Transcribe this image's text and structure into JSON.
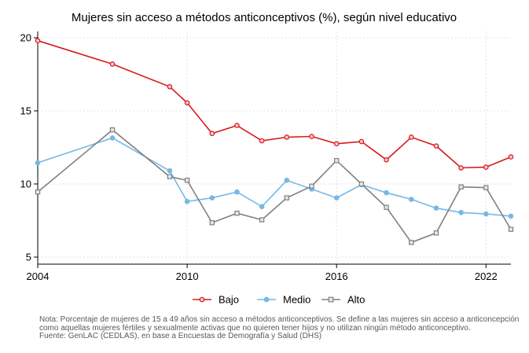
{
  "chart_data": {
    "type": "line",
    "title": "Mujeres sin acceso a métodos anticonceptivos (%), según nivel educativo",
    "xlabel": "",
    "ylabel": "",
    "xlim": [
      2004,
      2022.8
    ],
    "ylim": [
      5,
      20
    ],
    "x_ticks": [
      2004,
      2010,
      2016,
      2022
    ],
    "y_ticks": [
      5,
      10,
      15,
      20
    ],
    "grid": true,
    "legend_position": "bottom",
    "series": [
      {
        "name": "Bajo",
        "color": "#d7191c",
        "marker": "circle",
        "points": [
          [
            2004.0,
            19.8
          ],
          [
            2007.0,
            18.2
          ],
          [
            2009.3,
            16.65
          ],
          [
            2010.0,
            15.55
          ],
          [
            2011.0,
            13.45
          ],
          [
            2012.0,
            14.0
          ],
          [
            2013.0,
            12.95
          ],
          [
            2014.0,
            13.2
          ],
          [
            2015.0,
            13.25
          ],
          [
            2016.0,
            12.75
          ],
          [
            2017.0,
            12.9
          ],
          [
            2018.0,
            11.65
          ],
          [
            2019.0,
            13.2
          ],
          [
            2020.0,
            12.6
          ],
          [
            2021.0,
            11.1
          ],
          [
            2022.0,
            11.15
          ],
          [
            2023.0,
            11.85
          ]
        ]
      },
      {
        "name": "Medio",
        "color": "#74b9e7",
        "marker": "circle",
        "points": [
          [
            2004.0,
            11.45
          ],
          [
            2007.0,
            13.15
          ],
          [
            2009.3,
            10.9
          ],
          [
            2010.0,
            8.8
          ],
          [
            2011.0,
            9.05
          ],
          [
            2012.0,
            9.45
          ],
          [
            2013.0,
            8.45
          ],
          [
            2014.0,
            10.25
          ],
          [
            2015.0,
            9.65
          ],
          [
            2016.0,
            9.05
          ],
          [
            2017.0,
            9.95
          ],
          [
            2018.0,
            9.4
          ],
          [
            2019.0,
            8.95
          ],
          [
            2020.0,
            8.35
          ],
          [
            2021.0,
            8.05
          ],
          [
            2022.0,
            7.95
          ],
          [
            2023.0,
            7.8
          ]
        ]
      },
      {
        "name": "Alto",
        "color": "#808080",
        "marker": "square",
        "points": [
          [
            2004.0,
            9.45
          ],
          [
            2007.0,
            13.7
          ],
          [
            2009.3,
            10.5
          ],
          [
            2010.0,
            10.25
          ],
          [
            2011.0,
            7.35
          ],
          [
            2012.0,
            8.0
          ],
          [
            2013.0,
            7.55
          ],
          [
            2014.0,
            9.05
          ],
          [
            2015.0,
            9.85
          ],
          [
            2016.0,
            11.6
          ],
          [
            2017.0,
            10.0
          ],
          [
            2018.0,
            8.4
          ],
          [
            2019.0,
            6.0
          ],
          [
            2020.0,
            6.65
          ],
          [
            2021.0,
            9.8
          ],
          [
            2022.0,
            9.75
          ],
          [
            2023.0,
            6.9
          ]
        ]
      }
    ]
  },
  "notes": {
    "line1": "Nota: Porcentaje de mujeres de 15 a 49 años sin acceso a métodos anticonceptivos. Se define a las mujeres sin acceso a anticoncepción como aquellas mujeres fértiles y sexualmente activas que no quieren tener hijos y no utilizan ningún método anticonceptivo.",
    "line2": "Fuente: GenLAC (CEDLAS), en base a Encuestas de Demografía y Salud (DHS)"
  }
}
